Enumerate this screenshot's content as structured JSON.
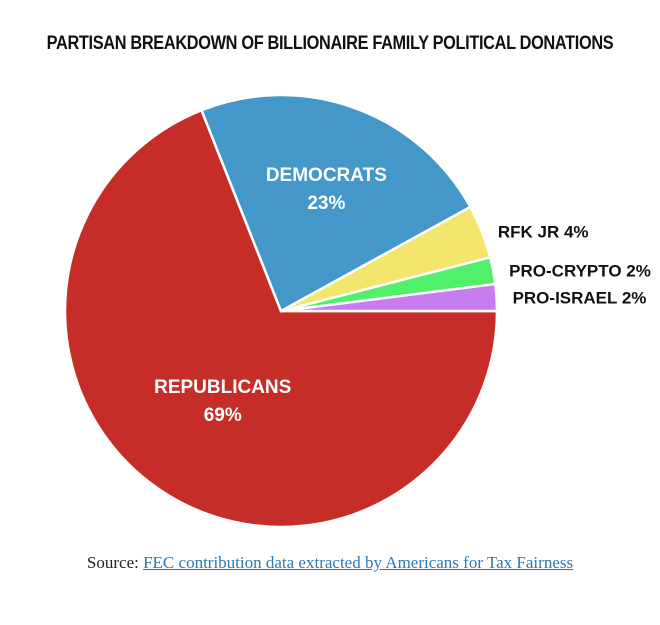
{
  "chart_data": {
    "type": "pie",
    "title": "PARTISAN BREAKDOWN OF BILLIONAIRE FAMILY POLITICAL DONATIONS",
    "slices": [
      {
        "label": "REPUBLICANS",
        "value": 69,
        "value_label": "69%",
        "color": "#c62d28"
      },
      {
        "label": "DEMOCRATS",
        "value": 23,
        "value_label": "23%",
        "color": "#4397c9"
      },
      {
        "label": "RFK JR",
        "value": 4,
        "value_label": "4%",
        "color": "#f2e66d"
      },
      {
        "label": "PRO-CRYPTO",
        "value": 2,
        "value_label": "2%",
        "color": "#4ff06a"
      },
      {
        "label": "PRO-ISRAEL",
        "value": 2,
        "value_label": "2%",
        "color": "#c77cf0"
      }
    ]
  },
  "source": {
    "prefix": "Source: ",
    "link_text": "FEC contribution data extracted by Americans for Tax Fairness",
    "link_color": "#2a7ab8"
  }
}
